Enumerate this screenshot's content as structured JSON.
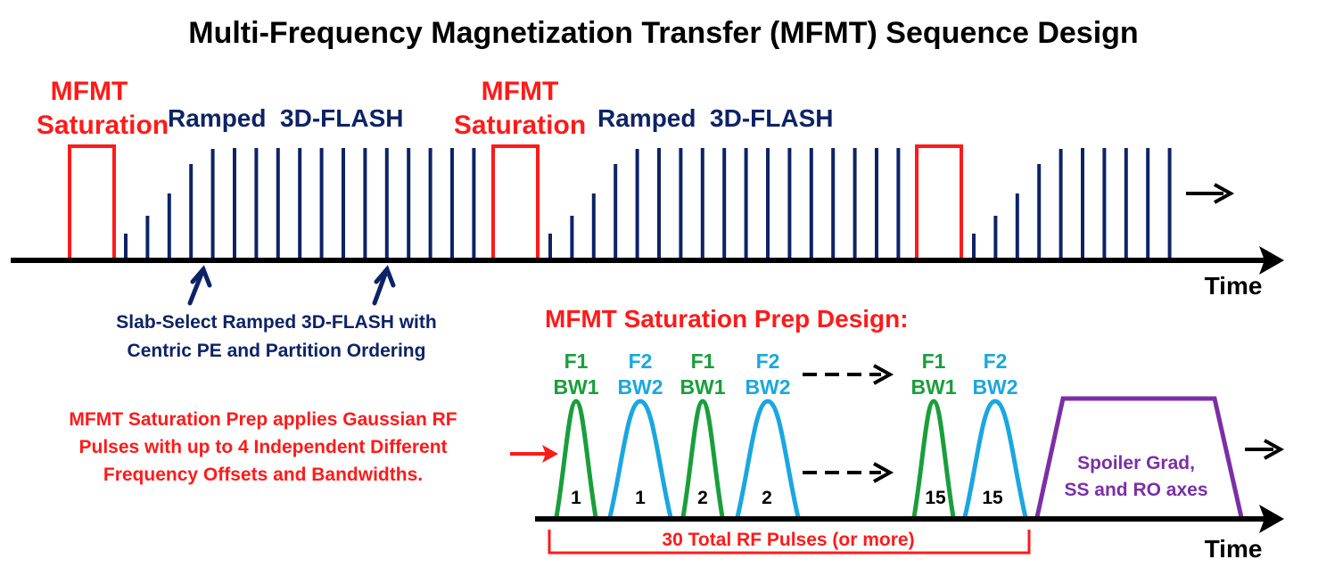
{
  "title": "Multi-Frequency Magnetization Transfer (MFMT) Sequence Design",
  "top": {
    "sat_label_line1": "MFMT",
    "sat_label_line2": "Saturation",
    "flash_label": "Ramped  3D-FLASH",
    "time_label": "Time",
    "annotation_line1": "Slab-Select Ramped 3D-FLASH with",
    "annotation_line2": "Centric PE and Partition Ordering"
  },
  "bottom": {
    "heading": "MFMT Saturation Prep Design:",
    "side_note_line1": "MFMT Saturation Prep applies Gaussian RF",
    "side_note_line2": "Pulses with up to 4 Independent Different",
    "side_note_line3": "Frequency Offsets and Bandwidths.",
    "pulses": [
      {
        "freq": "F1",
        "bw": "BW1",
        "num": "1",
        "color": "#1a9e3c"
      },
      {
        "freq": "F2",
        "bw": "BW2",
        "num": "1",
        "color": "#1aa7e0"
      },
      {
        "freq": "F1",
        "bw": "BW1",
        "num": "2",
        "color": "#1a9e3c"
      },
      {
        "freq": "F2",
        "bw": "BW2",
        "num": "2",
        "color": "#1aa7e0"
      },
      {
        "freq": "F1",
        "bw": "BW1",
        "num": "15",
        "color": "#1a9e3c"
      },
      {
        "freq": "F2",
        "bw": "BW2",
        "num": "15",
        "color": "#1aa7e0"
      }
    ],
    "spoiler_line1": "Spoiler Grad,",
    "spoiler_line2": "SS and RO axes",
    "brace_label": "30 Total RF Pulses (or more)",
    "time_label": "Time"
  },
  "colors": {
    "red": "#ff1a1a",
    "navy": "#0d2366",
    "green": "#1a9e3c",
    "cyan": "#1aa7e0",
    "purple": "#7b2fa6"
  }
}
